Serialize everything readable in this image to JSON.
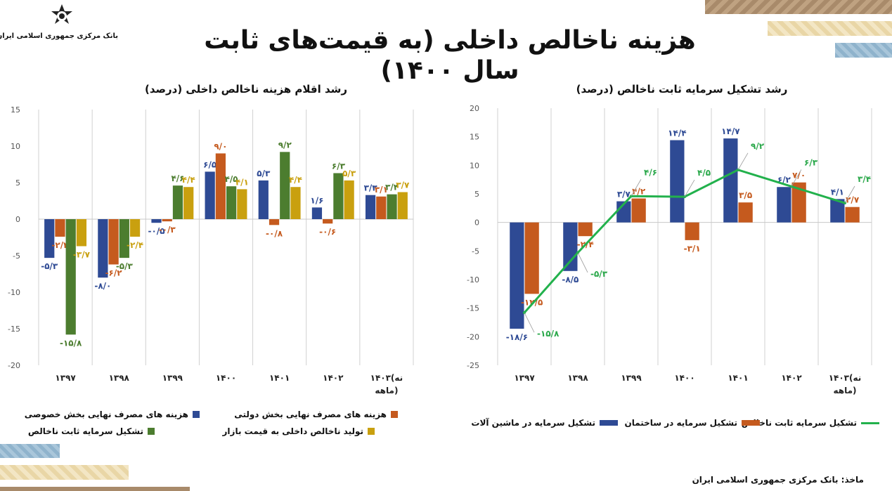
{
  "header": {
    "bank_name": "بانک مرکزی جمهوری اسلامی ایران",
    "title": "هزینه ناخالص داخلی (به قیمت‌های ثابت سال ۱۴۰۰)"
  },
  "colors": {
    "blue": "#2e4a94",
    "orange": "#c55a1e",
    "green": "#4c7d2f",
    "gold": "#c9a00f",
    "line": "#22b14c",
    "axis_text": "#555555",
    "decor_brown": "#a88a6a",
    "decor_cream": "#e9d6a6",
    "decor_blue": "#8fb3cc"
  },
  "source": "ماخذ: بانک مرکزی جمهوری اسلامی ایران",
  "chart_data": [
    {
      "type": "bar",
      "title": "رشد اقلام هزینه ناخالص داخلی (درصد)",
      "categories": [
        "۱۳۹۷",
        "۱۳۹۸",
        "۱۳۹۹",
        "۱۴۰۰",
        "۱۴۰۱",
        "۱۴۰۲",
        "۱۴۰۳(نه ماهه)"
      ],
      "category_lines": [
        [
          "۱۳۹۷"
        ],
        [
          "۱۳۹۸"
        ],
        [
          "۱۳۹۹"
        ],
        [
          "۱۴۰۰"
        ],
        [
          "۱۴۰۱"
        ],
        [
          "۱۴۰۲"
        ],
        [
          "۱۴۰۳(نه",
          "ماهه)"
        ]
      ],
      "ylim": [
        -20,
        15
      ],
      "yticks": [
        15,
        10,
        5,
        0,
        -5,
        -10,
        -15,
        -20
      ],
      "ytick_labels": [
        "15",
        "10",
        "5",
        "0",
        "-5",
        "-10",
        "-15",
        "-20"
      ],
      "series": [
        {
          "name": "هزینه های مصرف نهایی بخش خصوصی",
          "color_key": "blue",
          "values": [
            -5.3,
            -8.0,
            -0.5,
            6.5,
            5.3,
            1.6,
            3.3
          ],
          "labels": [
            "-۵/۳",
            "-۸/۰",
            "-۰/۵",
            "۶/۵",
            "۵/۳",
            "۱/۶",
            "۳/۳"
          ]
        },
        {
          "name": "هزینه های مصرف نهایی بخش دولتی",
          "color_key": "orange",
          "values": [
            -2.4,
            -6.2,
            -0.3,
            9.0,
            -0.8,
            -0.6,
            3.1
          ],
          "labels": [
            "-۲/۴",
            "-۶/۲",
            "-۰/۳",
            "۹/۰",
            "-۰/۸",
            "-۰/۶",
            "۳/۱"
          ]
        },
        {
          "name": "تشکیل سرمایه ثابت ناخالص",
          "color_key": "green",
          "values": [
            -15.8,
            -5.3,
            4.6,
            4.5,
            9.2,
            6.3,
            3.4
          ],
          "labels": [
            "-۱۵/۸",
            "-۵/۳",
            "۴/۶",
            "۴/۵",
            "۹/۲",
            "۶/۳",
            "۳/۴"
          ]
        },
        {
          "name": "تولید ناخالص داخلی به قیمت بازار",
          "color_key": "gold",
          "values": [
            -3.7,
            -2.4,
            4.4,
            4.1,
            4.4,
            5.3,
            3.7
          ],
          "labels": [
            "-۳/۷",
            "-۲/۴",
            "۴/۴",
            "۴/۱",
            "۴/۴",
            "۵/۳",
            "۳/۷"
          ]
        }
      ]
    },
    {
      "type": "bar",
      "title": "رشد تشکیل سرمایه ثابت ناخالص (درصد)",
      "categories": [
        "۱۳۹۷",
        "۱۳۹۸",
        "۱۳۹۹",
        "۱۴۰۰",
        "۱۴۰۱",
        "۱۴۰۲",
        "۱۴۰۳(نه ماهه)"
      ],
      "category_lines": [
        [
          "۱۳۹۷"
        ],
        [
          "۱۳۹۸"
        ],
        [
          "۱۳۹۹"
        ],
        [
          "۱۴۰۰"
        ],
        [
          "۱۴۰۱"
        ],
        [
          "۱۴۰۲"
        ],
        [
          "۱۴۰۳(نه",
          "ماهه)"
        ]
      ],
      "ylim": [
        -25,
        20
      ],
      "yticks": [
        20,
        15,
        10,
        5,
        0,
        -5,
        -10,
        -15,
        -20,
        -25
      ],
      "ytick_labels": [
        "20",
        "15",
        "10",
        "5",
        "0",
        "-5",
        "-10",
        "-15",
        "-20",
        "-25"
      ],
      "series": [
        {
          "name": "تشکیل سرمایه در ماشین آلات",
          "color_key": "blue",
          "values": [
            -18.6,
            -8.5,
            3.7,
            14.4,
            14.7,
            6.2,
            4.1
          ],
          "labels": [
            "-۱۸/۶",
            "-۸/۵",
            "۳/۷",
            "۱۴/۴",
            "۱۴/۷",
            "۶/۲",
            "۴/۱"
          ]
        },
        {
          "name": "تشکیل سرمایه در ساختمان",
          "color_key": "orange",
          "values": [
            -12.5,
            -2.4,
            4.2,
            -3.1,
            3.5,
            7.0,
            2.7
          ],
          "labels": [
            "-۱۲/۵",
            "-۲/۴",
            "۴/۲",
            "-۳/۱",
            "۳/۵",
            "۷/۰",
            "۲/۷"
          ]
        },
        {
          "name": "تشکیل سرمایه ثابت ناخالص",
          "color_key": "line",
          "render": "line",
          "values": [
            -15.8,
            -5.3,
            4.6,
            4.5,
            9.2,
            6.3,
            3.4
          ],
          "labels": [
            "-۱۵/۸",
            "-۵/۳",
            "۴/۶",
            "۴/۵",
            "۹/۲",
            "۶/۳",
            "۳/۴"
          ]
        }
      ]
    }
  ]
}
